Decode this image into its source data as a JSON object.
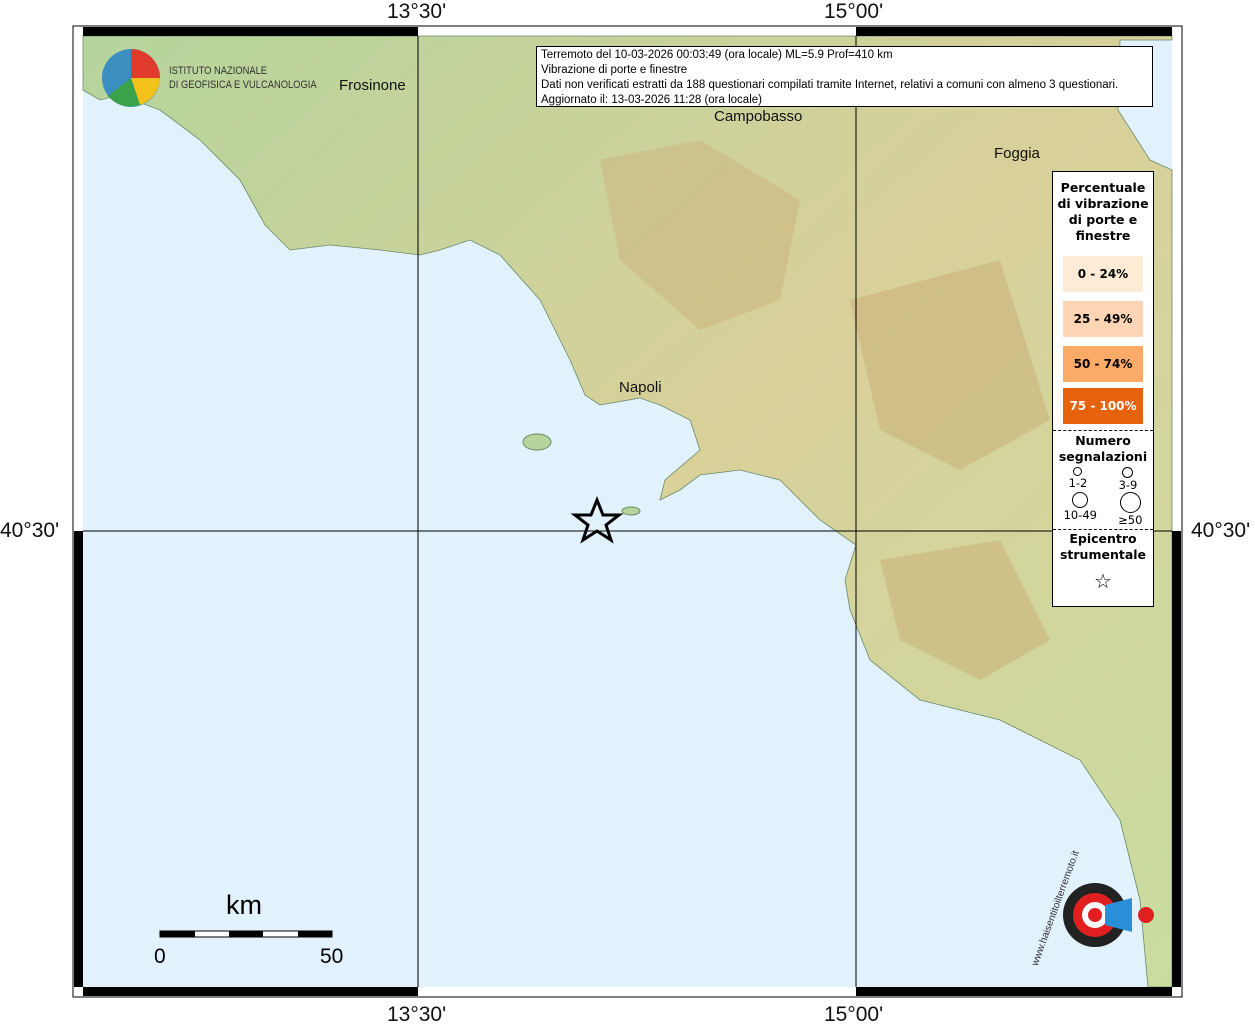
{
  "axes": {
    "lon_ticks": [
      "13°30'",
      "15°00'"
    ],
    "lat_ticks": [
      "40°30'"
    ]
  },
  "info": {
    "lines": [
      "Terremoto del 10-03-2026 00:03:49 (ora locale) ML=5.9 Prof=410 km",
      "Vibrazione di porte e finestre",
      "Dati non verificati estratti da 188 questionari compilati tramite Internet, relativi a comuni con almeno 3 questionari.",
      "Aggiornato il: 13-03-2026 11:28 (ora locale)"
    ]
  },
  "cities": {
    "frosinone": "Frosinone",
    "campobasso": "Campobasso",
    "foggia": "Foggia",
    "napoli": "Napoli"
  },
  "logo": {
    "line1": "ISTITUTO NAZIONALE",
    "line2": "DI GEOFISICA E VULCANOLOGIA"
  },
  "legend": {
    "title": "Percentuale di vibrazione di porte e finestre",
    "classes": [
      {
        "label": "0 - 24%",
        "color": "#fdebd6"
      },
      {
        "label": "25 - 49%",
        "color": "#fdd5b4"
      },
      {
        "label": "50 - 74%",
        "color": "#fbaa68"
      },
      {
        "label": "75 - 100%",
        "color": "#e8620e"
      }
    ],
    "count_title": "Numero segnalazioni",
    "counts": [
      "1-2",
      "3-9",
      "10-49",
      "≥50"
    ],
    "epicenter_title": "Epicentro strumentale"
  },
  "scale": {
    "unit": "km",
    "min": "0",
    "max": "50"
  },
  "watermark": "www.haisentitoilterremoto.it",
  "colors": {
    "sea": "#e2f2fd",
    "land": "#a9cf95",
    "relief": "#d8c08a"
  }
}
